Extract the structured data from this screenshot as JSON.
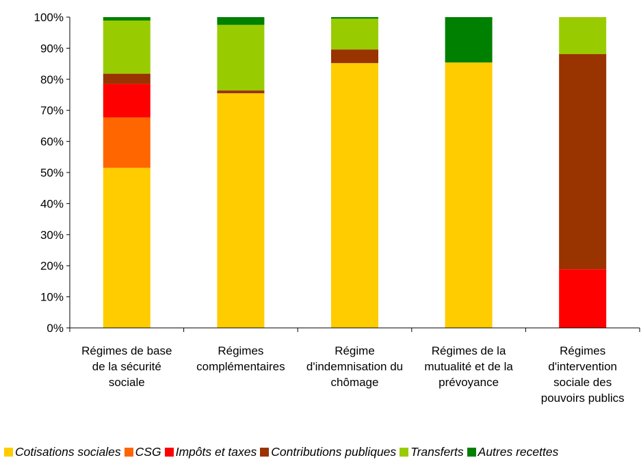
{
  "chart_data": {
    "type": "bar",
    "stacked": true,
    "percent": true,
    "categories": [
      [
        "Régimes de base",
        "de la sécurité",
        "sociale"
      ],
      [
        "Régimes",
        "complémentaires"
      ],
      [
        "Régime",
        "d'indemnisation du",
        "chômage"
      ],
      [
        "Régimes de la",
        "mutualité et de la",
        "prévoyance"
      ],
      [
        "Régimes",
        "d'intervention",
        "sociale des",
        "pouvoirs publics"
      ]
    ],
    "series": [
      {
        "name": "Cotisations sociales",
        "color": "#ffcc00",
        "values": [
          51.5,
          75.5,
          85.2,
          85.4,
          0
        ]
      },
      {
        "name": "CSG",
        "color": "#ff6600",
        "values": [
          16.2,
          0,
          0,
          0,
          0
        ]
      },
      {
        "name": "Impôts et taxes",
        "color": "#ff0000",
        "values": [
          10.8,
          0,
          0,
          0,
          18.9
        ]
      },
      {
        "name": "Contributions publiques",
        "color": "#993300",
        "values": [
          3.3,
          0.9,
          4.4,
          0,
          69.2
        ]
      },
      {
        "name": "Transferts",
        "color": "#99cc00",
        "values": [
          17.1,
          21.1,
          9.9,
          0,
          11.9
        ]
      },
      {
        "name": "Autres recettes",
        "color": "#008000",
        "values": [
          1.1,
          2.5,
          0.5,
          14.6,
          0
        ]
      }
    ],
    "yticks": [
      "0%",
      "10%",
      "20%",
      "30%",
      "40%",
      "50%",
      "60%",
      "70%",
      "80%",
      "90%",
      "100%"
    ],
    "ylim": [
      0,
      100
    ],
    "grid": false,
    "legend_position": "bottom"
  }
}
